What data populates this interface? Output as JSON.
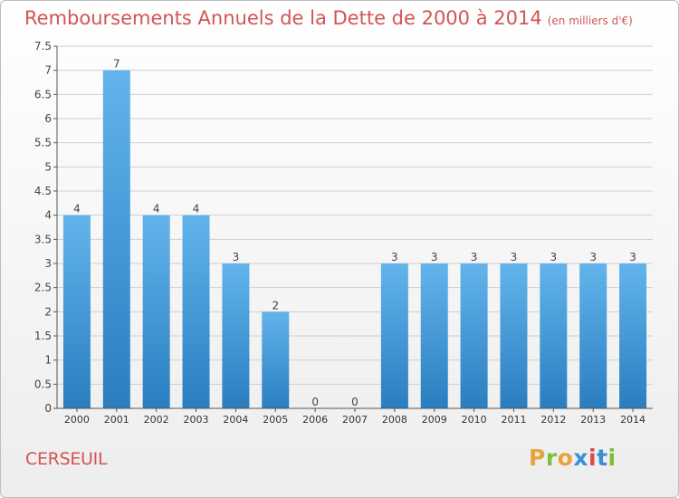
{
  "header": {
    "title": "Remboursements Annuels de la Dette de 2000 à 2014",
    "unit": "(en milliers d'€)"
  },
  "footer": {
    "commune": "CERSEUIL",
    "brand": "Proxiti",
    "brand_colors": [
      "#e8a33a",
      "#7bbf3a",
      "#e8a33a",
      "#3a8fd6",
      "#e04a4a",
      "#3a8fd6",
      "#7bbf3a"
    ]
  },
  "colors": {
    "bar_light": "#63b4ec",
    "bar_dark": "#2a7ec0",
    "title": "#d35454",
    "grid": "#cfcfcf"
  },
  "chart_data": {
    "type": "bar",
    "title": "Remboursements Annuels de la Dette de 2000 à 2014",
    "categories": [
      "2000",
      "2001",
      "2002",
      "2003",
      "2004",
      "2005",
      "2006",
      "2007",
      "2008",
      "2009",
      "2010",
      "2011",
      "2012",
      "2013",
      "2014"
    ],
    "values": [
      4,
      7,
      4,
      4,
      3,
      2,
      0,
      0,
      3,
      3,
      3,
      3,
      3,
      3,
      3
    ],
    "data_labels": [
      "4",
      "7",
      "4",
      "4",
      "3",
      "2",
      "0",
      "0",
      "3",
      "3",
      "3",
      "3",
      "3",
      "3",
      "3"
    ],
    "ylim": [
      0,
      7.5
    ],
    "yticks": [
      0,
      0.5,
      1,
      1.5,
      2,
      2.5,
      3,
      3.5,
      4,
      4.5,
      5,
      5.5,
      6,
      6.5,
      7,
      7.5
    ],
    "ytick_labels": [
      "0",
      "0.5",
      "1",
      "1.5",
      "2",
      "2.5",
      "3",
      "3.5",
      "4",
      "4.5",
      "5",
      "5.5",
      "6",
      "6.5",
      "7",
      "7.5"
    ],
    "grid": true
  }
}
